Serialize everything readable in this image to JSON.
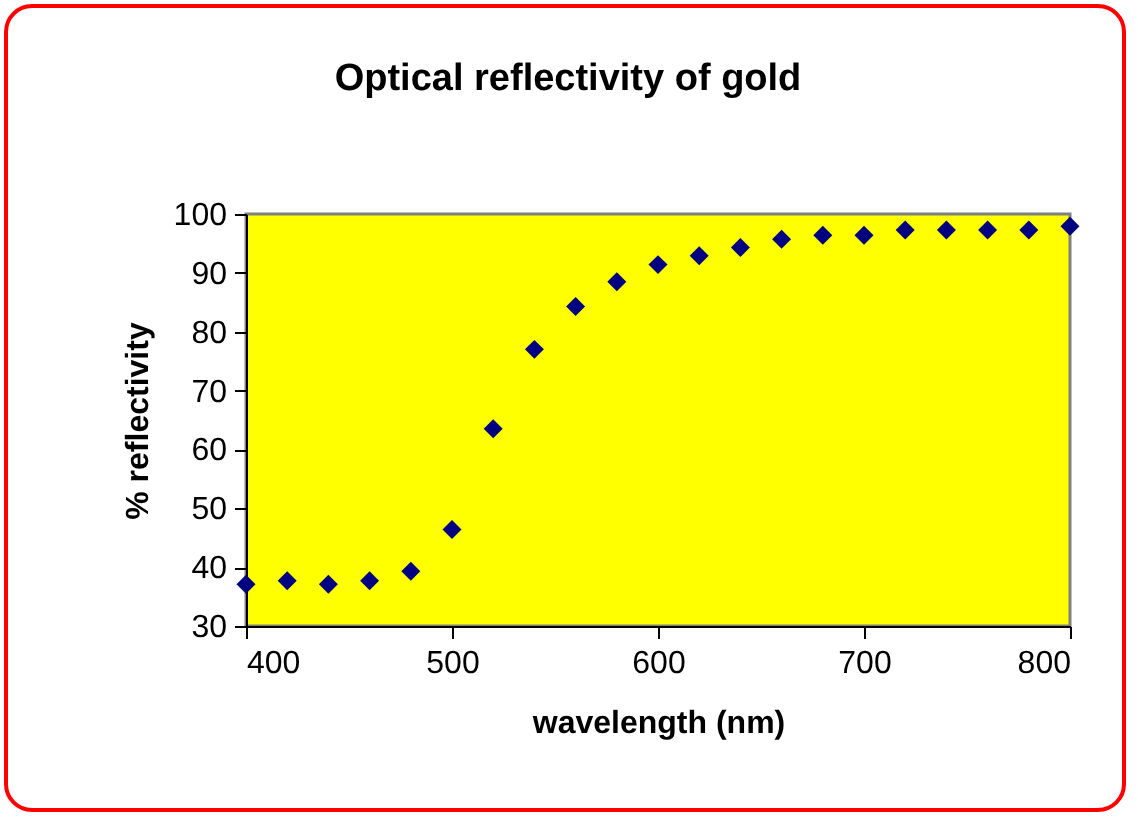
{
  "chart_data": {
    "type": "scatter",
    "title": "Optical reflectivity of gold",
    "xlabel": "wavelength (nm)",
    "ylabel": "% reflectivity",
    "x": [
      400,
      420,
      440,
      460,
      480,
      500,
      520,
      540,
      560,
      580,
      600,
      620,
      640,
      660,
      680,
      700,
      720,
      740,
      760,
      780,
      800
    ],
    "series": [
      {
        "color": "#000080",
        "values": [
          37.1,
          37.7,
          37.1,
          37.7,
          39.3,
          46.4,
          63.5,
          77.0,
          84.3,
          88.5,
          91.4,
          92.9,
          94.3,
          95.7,
          96.4,
          96.4,
          97.3,
          97.3,
          97.3,
          97.3,
          97.9
        ]
      }
    ],
    "xlim": [
      400,
      800
    ],
    "xticks": [
      400,
      500,
      600,
      700,
      800
    ],
    "ylim": [
      30,
      100
    ],
    "yticks": [
      30,
      40,
      50,
      60,
      70,
      80,
      90,
      100
    ],
    "marker": "diamond",
    "grid": false
  }
}
